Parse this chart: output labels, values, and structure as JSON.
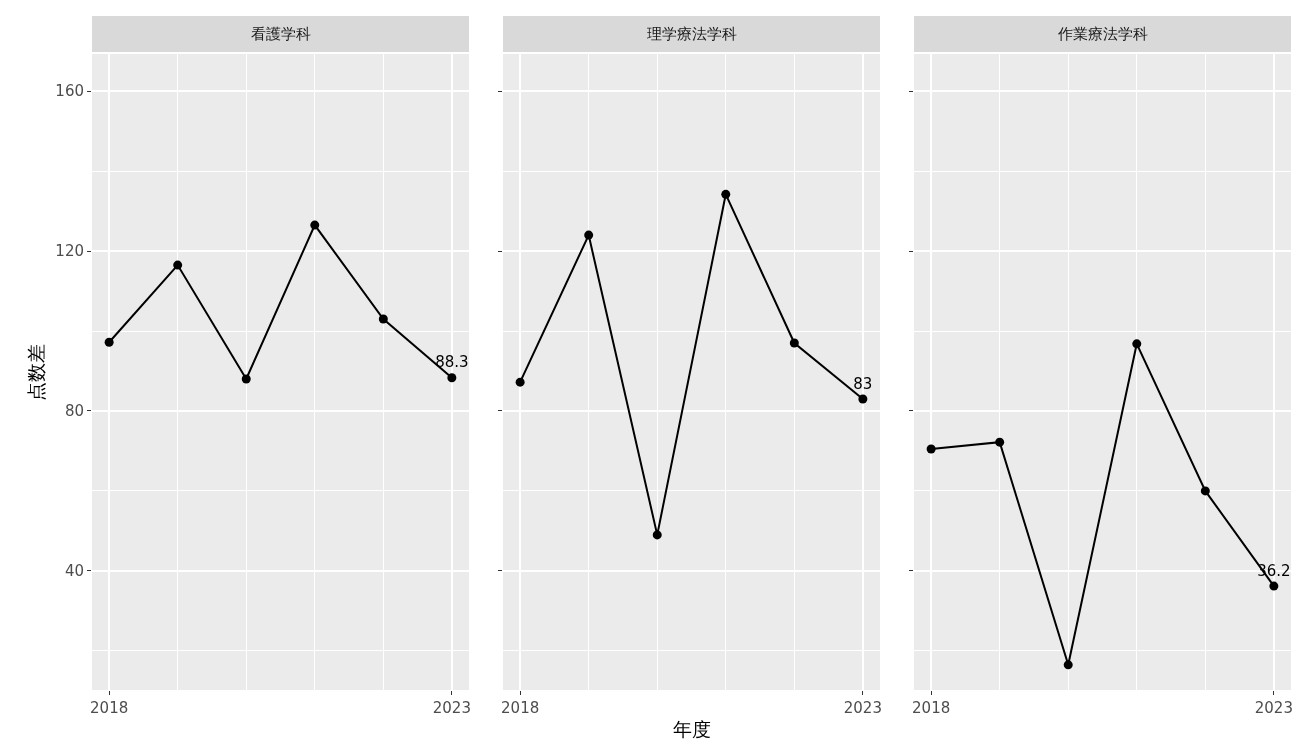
{
  "chart_data": [
    {
      "type": "line",
      "title": "看護学科",
      "ylabel": "点数差",
      "x": [
        2018,
        2019,
        2020,
        2021,
        2022,
        2023
      ],
      "series": [
        {
          "color": "#000000",
          "values": [
            97.2,
            116.5,
            88.0,
            126.5,
            103.0,
            88.3
          ],
          "value_labels": [
            null,
            null,
            null,
            null,
            null,
            "88.3"
          ]
        }
      ],
      "xlim": [
        2017.75,
        2023.25
      ],
      "xticks": [
        2018,
        2023
      ],
      "ylim": [
        10.2,
        169.3
      ],
      "yticks": [
        40,
        80,
        120,
        160
      ],
      "grid": true,
      "marker": "circle",
      "line_style": "solid",
      "legend": false
    },
    {
      "type": "line",
      "title": "理学療法学科",
      "xlabel": "年度",
      "x": [
        2018,
        2019,
        2020,
        2021,
        2022,
        2023
      ],
      "series": [
        {
          "color": "#000000",
          "values": [
            87.2,
            124.0,
            49.0,
            134.2,
            97.0,
            83
          ],
          "value_labels": [
            null,
            null,
            null,
            null,
            null,
            "83"
          ]
        }
      ],
      "xlim": [
        2017.75,
        2023.25
      ],
      "xticks": [
        2018,
        2023
      ],
      "ylim": [
        10.2,
        169.3
      ],
      "yticks": [
        40,
        80,
        120,
        160
      ],
      "grid": true,
      "marker": "circle",
      "line_style": "solid",
      "legend": false,
      "tick_labels": "x"
    },
    {
      "type": "line",
      "title": "作業療法学科",
      "x": [
        2018,
        2019,
        2020,
        2021,
        2022,
        2023
      ],
      "series": [
        {
          "color": "#000000",
          "values": [
            70.5,
            72.2,
            16.5,
            96.8,
            60.0,
            36.2
          ],
          "value_labels": [
            null,
            null,
            null,
            null,
            null,
            "36.2"
          ]
        }
      ],
      "xlim": [
        2017.75,
        2023.25
      ],
      "xticks": [
        2018,
        2023
      ],
      "ylim": [
        10.2,
        169.3
      ],
      "yticks": [
        40,
        80,
        120,
        160
      ],
      "grid": true,
      "marker": "circle",
      "line_style": "solid",
      "legend": false,
      "tick_labels": "x"
    }
  ]
}
